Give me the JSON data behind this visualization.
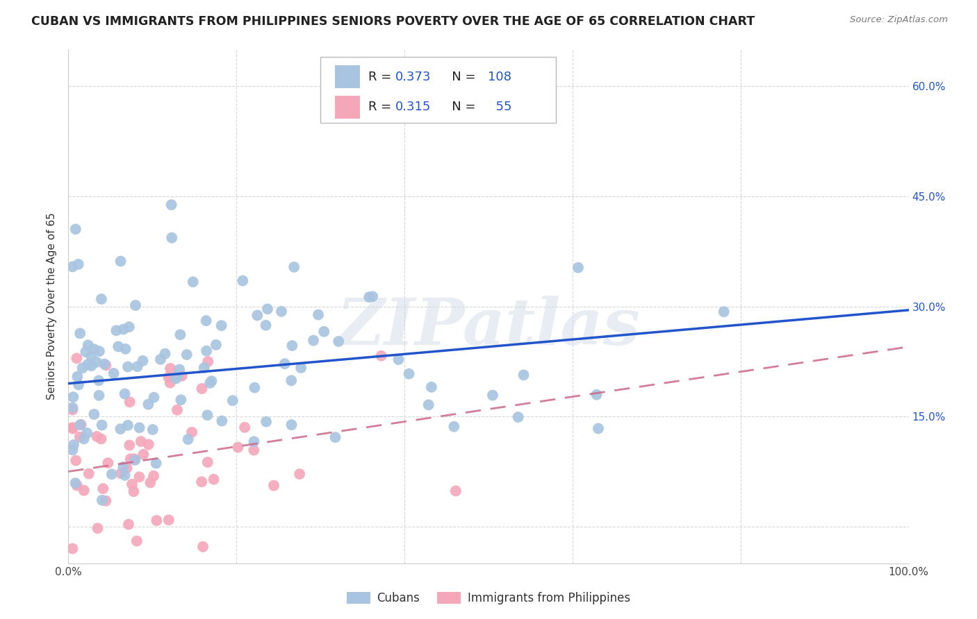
{
  "title": "CUBAN VS IMMIGRANTS FROM PHILIPPINES SENIORS POVERTY OVER THE AGE OF 65 CORRELATION CHART",
  "source": "Source: ZipAtlas.com",
  "ylabel": "Seniors Poverty Over the Age of 65",
  "blue_label": "Cubans",
  "pink_label": "Immigrants from Philippines",
  "blue_R": 0.373,
  "blue_N": 108,
  "pink_R": 0.315,
  "pink_N": 55,
  "xlim": [
    0.0,
    1.0
  ],
  "ylim": [
    -0.05,
    0.65
  ],
  "blue_color": "#a8c4e0",
  "pink_color": "#f4a7b9",
  "blue_line_color": "#2255cc",
  "pink_line_color": "#cc6688",
  "grid_color": "#cccccc",
  "bg_color": "#ffffff",
  "watermark": "ZIPatlas",
  "title_fontsize": 12.5,
  "label_fontsize": 11,
  "tick_fontsize": 11,
  "legend_fontsize": 13,
  "blue_line_start_y": 0.195,
  "blue_line_end_y": 0.295,
  "pink_line_start_y": 0.075,
  "pink_line_end_y": 0.245
}
